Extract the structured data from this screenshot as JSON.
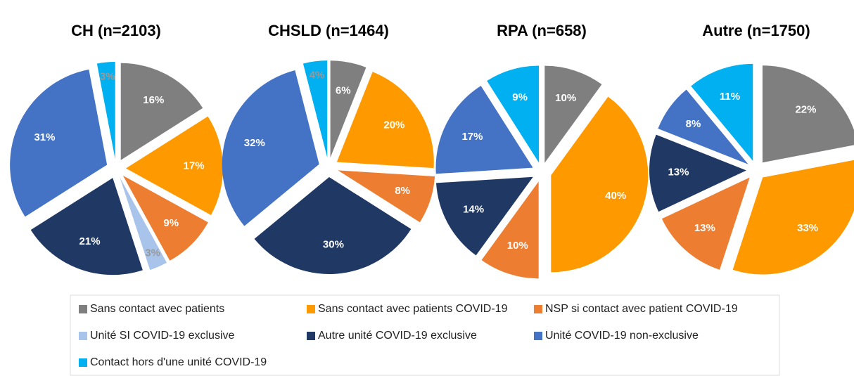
{
  "chart_data": [
    {
      "type": "pie",
      "title": "CH (n=2103)",
      "values": [
        16,
        17,
        9,
        3,
        21,
        31,
        3
      ],
      "value_labels": [
        "16%",
        "17%",
        "9%",
        "3%",
        "21%",
        "31%",
        "3%"
      ]
    },
    {
      "type": "pie",
      "title": "CHSLD (n=1464)",
      "values": [
        6,
        20,
        8,
        null,
        30,
        32,
        4
      ],
      "value_labels": [
        "6%",
        "20%",
        "8%",
        null,
        "30%",
        "32%",
        "4%"
      ]
    },
    {
      "type": "pie",
      "title": "RPA (n=658)",
      "values": [
        10,
        40,
        10,
        null,
        14,
        17,
        9
      ],
      "value_labels": [
        "10%",
        "40%",
        "10%",
        null,
        "14%",
        "17%",
        "9%"
      ]
    },
    {
      "type": "pie",
      "title": "Autre (n=1750)",
      "values": [
        22,
        33,
        13,
        null,
        13,
        8,
        11
      ],
      "value_labels": [
        "22%",
        "33%",
        "13%",
        null,
        "13%",
        "8%",
        "11%"
      ]
    }
  ],
  "legend": {
    "labels": [
      "Sans contact avec patients",
      "Sans contact avec patients COVID-19",
      "NSP si contact avec patient COVID-19",
      "Unité SI COVID-19 exclusive",
      "Autre unité COVID-19 exclusive",
      "Unité COVID-19 non-exclusive",
      "Contact hors d'une unité COVID-19"
    ],
    "colors": [
      "#7f7f7f",
      "#ff9900",
      "#ed7d31",
      "#a9c4eb",
      "#203864",
      "#4472c4",
      "#00b0f0"
    ]
  }
}
